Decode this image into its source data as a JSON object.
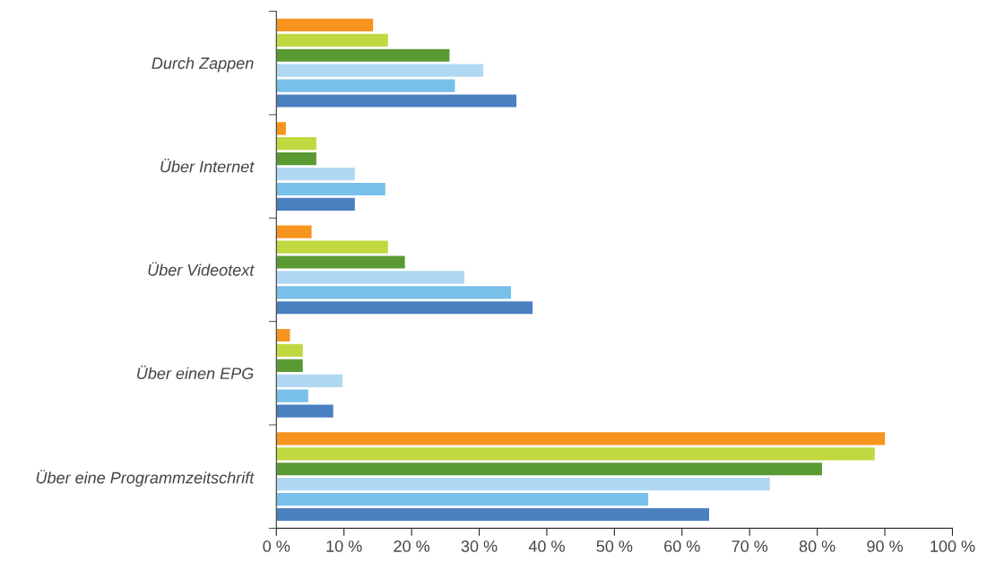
{
  "chart_data": {
    "type": "bar",
    "orientation": "horizontal",
    "categories": [
      "Durch Zappen",
      "Über Internet",
      "Über Videotext",
      "Über einen EPG",
      "Über eine Programmzeitschrift"
    ],
    "series": [
      {
        "color": "#f7941d",
        "values": [
          14.4,
          1.5,
          5.3,
          2.1,
          90.1
        ]
      },
      {
        "color": "#c2d840",
        "values": [
          16.6,
          6.0,
          16.6,
          4.0,
          88.6
        ]
      },
      {
        "color": "#5a9a32",
        "values": [
          25.7,
          6.0,
          19.1,
          4.0,
          80.8
        ]
      },
      {
        "color": "#b0d8f2",
        "values": [
          30.7,
          11.7,
          27.9,
          9.9,
          73.1
        ]
      },
      {
        "color": "#78bfea",
        "values": [
          26.5,
          16.2,
          34.8,
          4.8,
          55.1
        ]
      },
      {
        "color": "#4a7fc0",
        "values": [
          35.6,
          11.7,
          38.0,
          8.5,
          64.1
        ]
      }
    ],
    "xlim": [
      0,
      100
    ],
    "xticks": [
      {
        "value": 0,
        "label": "0 %"
      },
      {
        "value": 10,
        "label": "10 %"
      },
      {
        "value": 20,
        "label": "20 %"
      },
      {
        "value": 30,
        "label": "30 %"
      },
      {
        "value": 40,
        "label": "40 %"
      },
      {
        "value": 50,
        "label": "50 %"
      },
      {
        "value": 60,
        "label": "60 %"
      },
      {
        "value": 70,
        "label": "70 %"
      },
      {
        "value": 80,
        "label": "80 %"
      },
      {
        "value": 90,
        "label": "90 %"
      },
      {
        "value": 100,
        "label": "100 %"
      }
    ],
    "grid": false,
    "legend": false
  }
}
